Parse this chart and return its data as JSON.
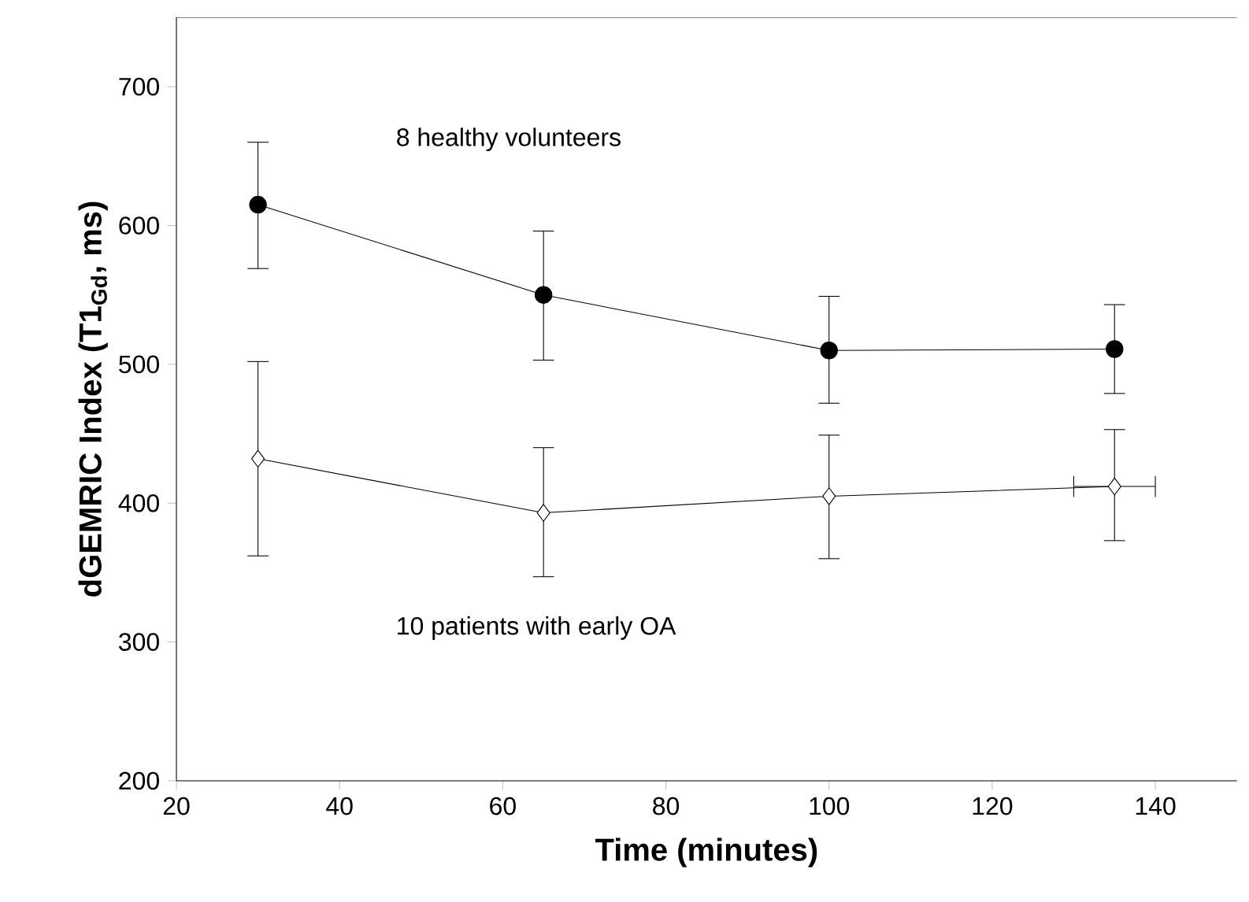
{
  "chart_data": {
    "type": "line",
    "xlabel": "Time (minutes)",
    "ylabel": "dGEMRIC Index (T1$_{Gd}$, ms)",
    "x": [
      30,
      65,
      100,
      135
    ],
    "series": [
      {
        "color": "#000000",
        "marker": "circle",
        "values": [
          615,
          550,
          510,
          511
        ],
        "errors": [
          [
            569,
            660
          ],
          [
            503,
            596
          ],
          [
            472,
            549
          ],
          [
            479,
            543
          ]
        ]
      },
      {
        "color": "#000000",
        "marker": "diamond",
        "values": [
          432,
          393,
          405,
          412
        ],
        "errors": [
          [
            362,
            502
          ],
          [
            347,
            440
          ],
          [
            360,
            449
          ],
          [
            373,
            453
          ]
        ],
        "xerrors": [
          null,
          null,
          null,
          [
            130,
            140
          ]
        ]
      }
    ],
    "annotations": [
      "8 healthy volunteers",
      "10 patients with early OA"
    ],
    "xlim": [
      20,
      150
    ],
    "ylim": [
      200,
      750
    ],
    "xticks": [
      20,
      40,
      60,
      80,
      100,
      120,
      140
    ],
    "yticks": [
      200,
      300,
      400,
      500,
      600,
      700
    ],
    "grid": false,
    "line_style": "solid"
  }
}
